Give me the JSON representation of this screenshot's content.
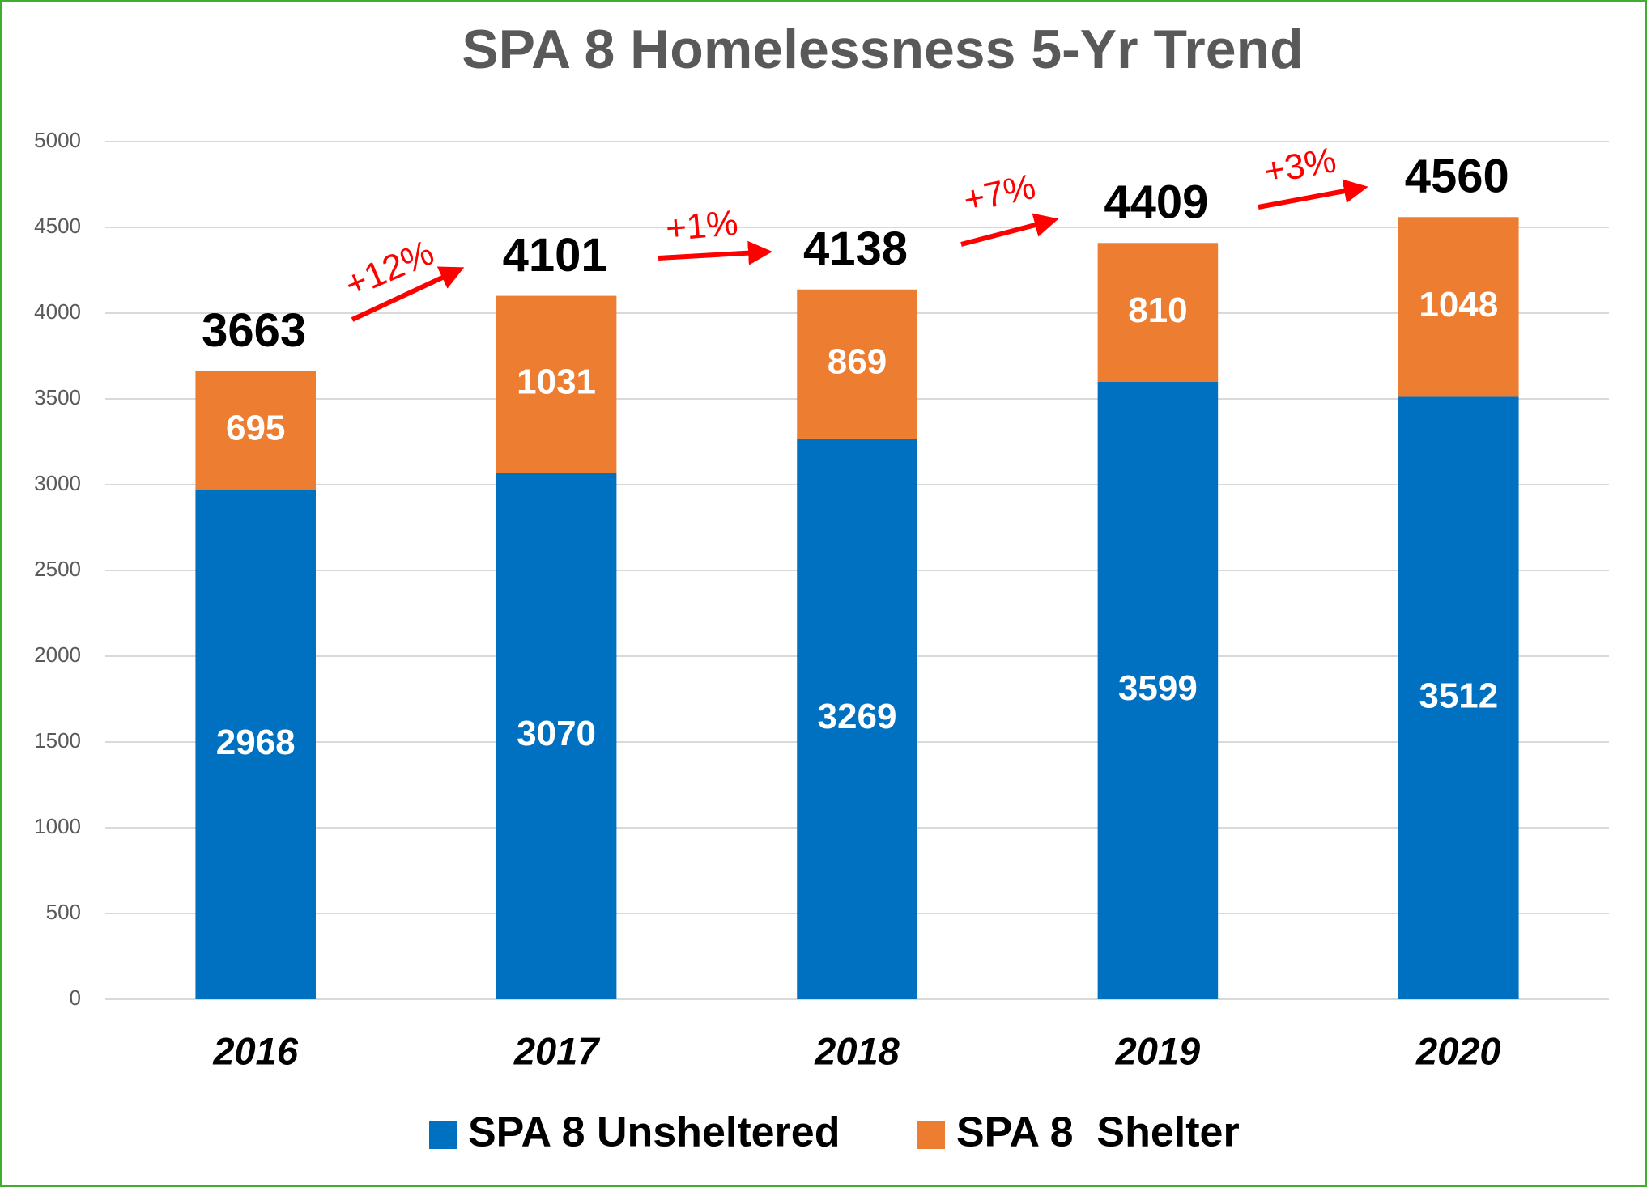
{
  "chart_data": {
    "type": "stacked_bar",
    "title": "SPA 8 Homelessness 5-Yr Trend",
    "categories": [
      "2016",
      "2017",
      "2018",
      "2019",
      "2020"
    ],
    "series": [
      {
        "name": "SPA 8 Unsheltered",
        "color": "#0070c0",
        "values": [
          2968,
          3070,
          3269,
          3599,
          3512
        ]
      },
      {
        "name": "SPA 8  Shelter",
        "color": "#ed7d31",
        "values": [
          695,
          1031,
          869,
          810,
          1048
        ]
      }
    ],
    "totals": [
      3663,
      4101,
      4138,
      4409,
      4560
    ],
    "annotations": [
      "+12%",
      "+1%",
      "+7%",
      "+3%"
    ],
    "annotation_color": "#ff0000",
    "ylim": [
      0,
      5000
    ],
    "yticks": [
      0,
      500,
      1000,
      1500,
      2000,
      2500,
      3000,
      3500,
      4000,
      4500,
      5000
    ],
    "grid": true,
    "legend": "bottom"
  }
}
